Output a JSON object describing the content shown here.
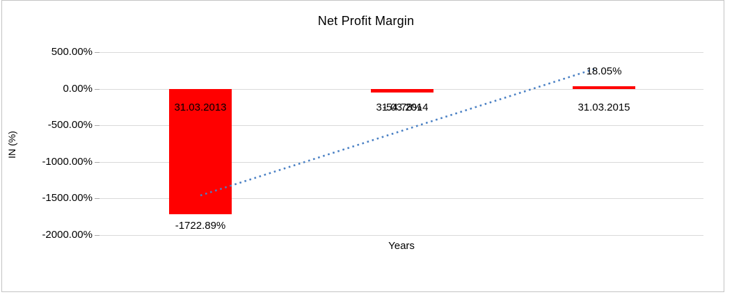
{
  "chart": {
    "title": "Net Profit Margin",
    "xlabel": "Years",
    "ylabel": "IN (%)"
  },
  "chart_data": {
    "type": "bar",
    "title": "Net Profit Margin",
    "xlabel": "Years",
    "ylabel": "IN (%)",
    "categories": [
      "31.03.2013",
      "31.03.2014",
      "31.03.2015"
    ],
    "values": [
      -1722.89,
      -54.78,
      18.05
    ],
    "data_labels": [
      "-1722.89%",
      "-54.78%",
      "18.05%"
    ],
    "ylim": [
      -2000,
      500
    ],
    "ytick_values": [
      500,
      0,
      -500,
      -1000,
      -1500,
      -2000
    ],
    "ytick_labels": [
      "500.00%",
      "0.00%",
      "-500.00%",
      "-1000.00%",
      "-1500.00%",
      "-2000.00%"
    ],
    "grid": true,
    "legend_position": "none",
    "bar_color": "#ff0000",
    "gridline_color": "#d9d9d9",
    "trendline": {
      "type": "linear",
      "style": "dotted",
      "color": "#4a80c4"
    }
  }
}
